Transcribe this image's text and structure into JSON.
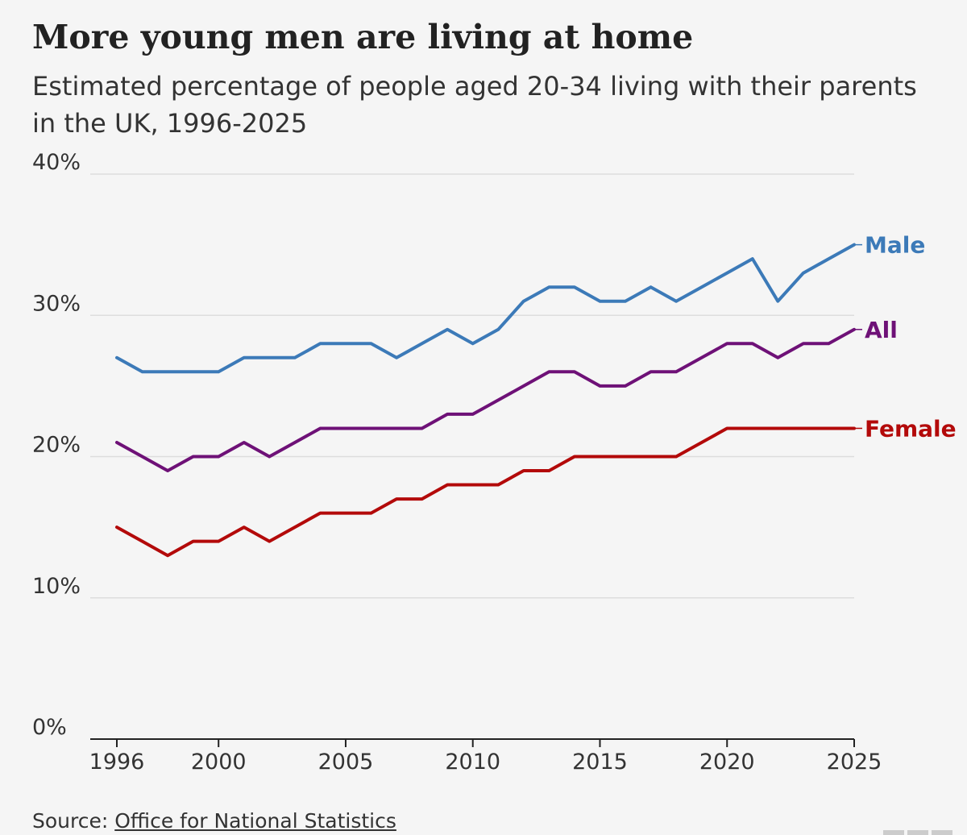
{
  "chart_data": {
    "type": "line",
    "title": "More young men are living at home",
    "subtitle": "Estimated percentage of people aged 20-34 living with their parents in the UK, 1996-2025",
    "x": [
      1996,
      1997,
      1998,
      1999,
      2000,
      2001,
      2002,
      2003,
      2004,
      2005,
      2006,
      2007,
      2008,
      2009,
      2010,
      2011,
      2012,
      2013,
      2014,
      2015,
      2016,
      2017,
      2018,
      2019,
      2020,
      2021,
      2022,
      2023,
      2024,
      2025
    ],
    "xlim": [
      1996,
      2025
    ],
    "ylim": [
      0,
      40
    ],
    "x_ticks": [
      1996,
      2000,
      2005,
      2010,
      2015,
      2020,
      2025
    ],
    "y_ticks": [
      0,
      10,
      20,
      30,
      40
    ],
    "y_tick_labels": [
      "0%",
      "10%",
      "20%",
      "30%",
      "40%"
    ],
    "grid": true,
    "legend": "direct labels at line ends",
    "series": [
      {
        "name": "Male",
        "color": "#3c7ab8",
        "values": [
          27,
          26,
          26,
          26,
          26,
          27,
          27,
          27,
          28,
          28,
          28,
          27,
          28,
          29,
          28,
          29,
          31,
          32,
          32,
          31,
          31,
          32,
          31,
          32,
          33,
          34,
          31,
          33,
          34,
          35
        ]
      },
      {
        "name": "All",
        "color": "#6e1177",
        "values": [
          21,
          20,
          19,
          20,
          20,
          21,
          20,
          21,
          22,
          22,
          22,
          22,
          22,
          23,
          23,
          24,
          25,
          26,
          26,
          25,
          25,
          26,
          26,
          27,
          28,
          28,
          27,
          28,
          28,
          29
        ]
      },
      {
        "name": "Female",
        "color": "#b30a0a",
        "values": [
          15,
          14,
          13,
          14,
          14,
          15,
          14,
          15,
          16,
          16,
          16,
          17,
          17,
          18,
          18,
          18,
          19,
          19,
          20,
          20,
          20,
          20,
          20,
          21,
          22,
          22,
          22,
          22,
          22,
          22
        ]
      }
    ]
  },
  "source": {
    "prefix": "Source: ",
    "link_text": "Office for National Statistics"
  },
  "colors": {
    "background": "#f5f5f5",
    "gridline": "#dddddd",
    "axis": "#222222",
    "text": "#222222"
  }
}
